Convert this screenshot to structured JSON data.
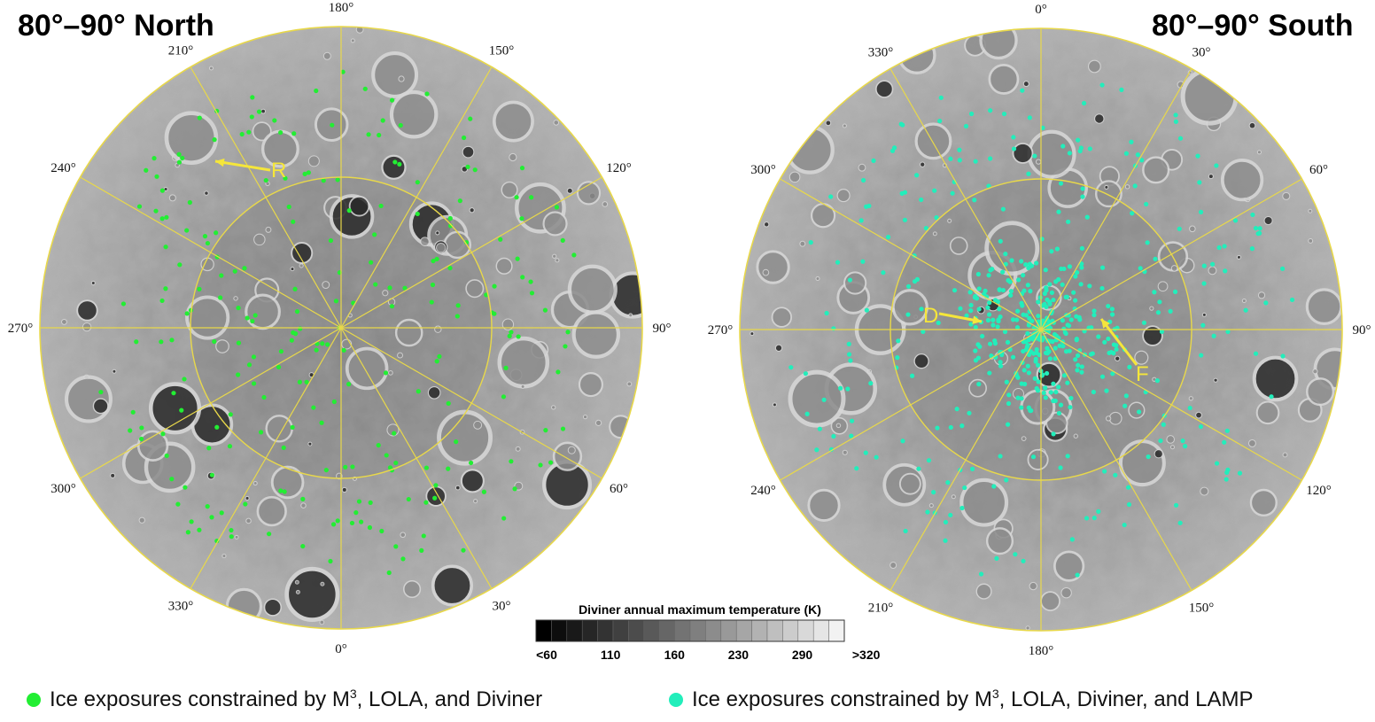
{
  "north": {
    "title": "80°–90° North",
    "longitude_labels": [
      {
        "text": "180°",
        "deg": 180
      },
      {
        "text": "150°",
        "deg": 150
      },
      {
        "text": "120°",
        "deg": 120
      },
      {
        "text": "90°",
        "deg": 90
      },
      {
        "text": "60°",
        "deg": 60
      },
      {
        "text": "30°",
        "deg": 30
      },
      {
        "text": "0°",
        "deg": 0
      },
      {
        "text": "330°",
        "deg": 330
      },
      {
        "text": "300°",
        "deg": 300
      },
      {
        "text": "270°",
        "deg": 270
      },
      {
        "text": "240°",
        "deg": 240
      },
      {
        "text": "210°",
        "deg": 210
      }
    ],
    "annotations": [
      {
        "label": "R"
      }
    ],
    "ice_color": "#22ee33"
  },
  "south": {
    "title": "80°–90° South",
    "longitude_labels": [
      {
        "text": "0°",
        "deg": 0
      },
      {
        "text": "30°",
        "deg": 30
      },
      {
        "text": "60°",
        "deg": 60
      },
      {
        "text": "90°",
        "deg": 90
      },
      {
        "text": "120°",
        "deg": 120
      },
      {
        "text": "150°",
        "deg": 150
      },
      {
        "text": "180°",
        "deg": 180
      },
      {
        "text": "210°",
        "deg": 210
      },
      {
        "text": "240°",
        "deg": 240
      },
      {
        "text": "270°",
        "deg": 270
      },
      {
        "text": "300°",
        "deg": 300
      },
      {
        "text": "330°",
        "deg": 330
      }
    ],
    "annotations": [
      {
        "label": "D"
      },
      {
        "label": "F"
      }
    ],
    "ice_color": "#22eebb"
  },
  "colorbar": {
    "title": "Diviner annual maximum temperature (K)",
    "tick_labels": [
      "<60",
      "110",
      "160",
      "230",
      "290",
      ">320"
    ],
    "steps": 20,
    "color_start": "#000000",
    "color_end": "#f2f2f2"
  },
  "legend": [
    {
      "text_before": "Ice exposures constrained by M",
      "superscript": "3",
      "text_after": ", LOLA, and Diviner",
      "color": "#22ee33"
    },
    {
      "text_before": "Ice exposures constrained by M",
      "superscript": "3",
      "text_after": ", LOLA, Diviner, and LAMP",
      "color": "#22eebb"
    }
  ]
}
